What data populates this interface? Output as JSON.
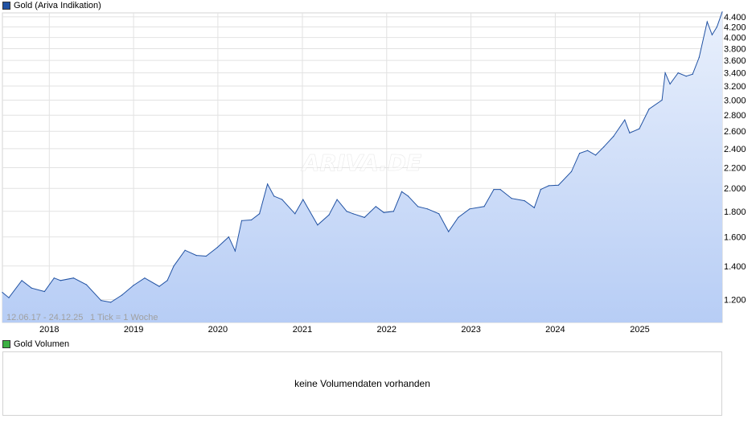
{
  "price_panel": {
    "legend_label": "Gold (Ariva Indikation)",
    "legend_color": "#2152a3",
    "period_text": "12.06.17 - 24.12.25",
    "tick_text": "1 Tick = 1 Woche",
    "watermark": "ARIVA.DE"
  },
  "volume_panel": {
    "legend_label": "Gold Volumen",
    "legend_color": "#3cb043",
    "message": "keine Volumendaten vorhanden"
  },
  "colors": {
    "line": "#2152a3",
    "fill_top": "#e9f0fc",
    "fill_bottom": "#b7cdf5",
    "grid": "#e2e2e2"
  },
  "chart_data": {
    "type": "area",
    "title": "Gold (Ariva Indikation)",
    "y_scale": "log",
    "ylim": [
      1080,
      4480
    ],
    "x_range": [
      "2017-06-12",
      "2025-12-24"
    ],
    "grid": true,
    "y_ticks": [
      1200,
      1400,
      1600,
      1800,
      2000,
      2200,
      2400,
      2600,
      2800,
      3000,
      3200,
      3400,
      3600,
      3800,
      4000,
      4200,
      4400
    ],
    "y_tick_labels": [
      "1.200",
      "1.400",
      "1.600",
      "1.800",
      "2.000",
      "2.200",
      "2.400",
      "2.600",
      "2.800",
      "3.000",
      "3.200",
      "3.400",
      "3.600",
      "3.800",
      "4.000",
      "4.200",
      "4.400"
    ],
    "x_ticks": [
      "2018-01-01",
      "2019-01-01",
      "2020-01-01",
      "2021-01-01",
      "2022-01-01",
      "2023-01-01",
      "2024-01-01",
      "2025-01-01"
    ],
    "x_tick_labels": [
      "2018",
      "2019",
      "2020",
      "2021",
      "2022",
      "2023",
      "2024",
      "2025"
    ],
    "series": [
      {
        "x": [
          "2017-06-12",
          "2017-07-10",
          "2017-09-04",
          "2017-10-16",
          "2017-12-11",
          "2018-01-22",
          "2018-02-19",
          "2018-04-16",
          "2018-06-11",
          "2018-08-13",
          "2018-09-24",
          "2018-11-12",
          "2018-12-31",
          "2019-02-18",
          "2019-04-22",
          "2019-05-27",
          "2019-06-24",
          "2019-08-12",
          "2019-09-30",
          "2019-11-11",
          "2019-12-30",
          "2020-02-17",
          "2020-03-16",
          "2020-04-13",
          "2020-05-25",
          "2020-06-29",
          "2020-08-03",
          "2020-08-31",
          "2020-10-05",
          "2020-11-30",
          "2021-01-04",
          "2021-03-08",
          "2021-04-26",
          "2021-05-31",
          "2021-07-12",
          "2021-08-09",
          "2021-09-27",
          "2021-11-15",
          "2021-12-20",
          "2022-01-31",
          "2022-03-07",
          "2022-04-04",
          "2022-05-16",
          "2022-06-27",
          "2022-08-15",
          "2022-09-26",
          "2022-11-07",
          "2022-12-26",
          "2023-02-27",
          "2023-04-10",
          "2023-05-08",
          "2023-06-26",
          "2023-08-21",
          "2023-10-02",
          "2023-10-30",
          "2023-12-04",
          "2024-01-15",
          "2024-03-11",
          "2024-04-15",
          "2024-05-20",
          "2024-06-24",
          "2024-07-29",
          "2024-09-09",
          "2024-10-28",
          "2024-11-18",
          "2024-12-30",
          "2025-02-10",
          "2025-04-07",
          "2025-04-21",
          "2025-05-12",
          "2025-06-16",
          "2025-07-21",
          "2025-08-18",
          "2025-09-15",
          "2025-10-20",
          "2025-11-10",
          "2025-12-01",
          "2025-12-24"
        ],
        "y": [
          1240,
          1210,
          1310,
          1265,
          1245,
          1325,
          1310,
          1325,
          1285,
          1195,
          1185,
          1225,
          1280,
          1325,
          1275,
          1310,
          1400,
          1505,
          1470,
          1465,
          1525,
          1600,
          1500,
          1725,
          1730,
          1780,
          2040,
          1930,
          1900,
          1780,
          1900,
          1690,
          1770,
          1900,
          1800,
          1780,
          1750,
          1840,
          1790,
          1800,
          1970,
          1930,
          1840,
          1820,
          1780,
          1640,
          1750,
          1820,
          1840,
          1990,
          1990,
          1910,
          1890,
          1830,
          1990,
          2025,
          2030,
          2160,
          2350,
          2380,
          2330,
          2420,
          2540,
          2740,
          2580,
          2630,
          2880,
          3000,
          3400,
          3230,
          3400,
          3350,
          3380,
          3650,
          4300,
          4050,
          4200,
          4500
        ]
      }
    ]
  }
}
